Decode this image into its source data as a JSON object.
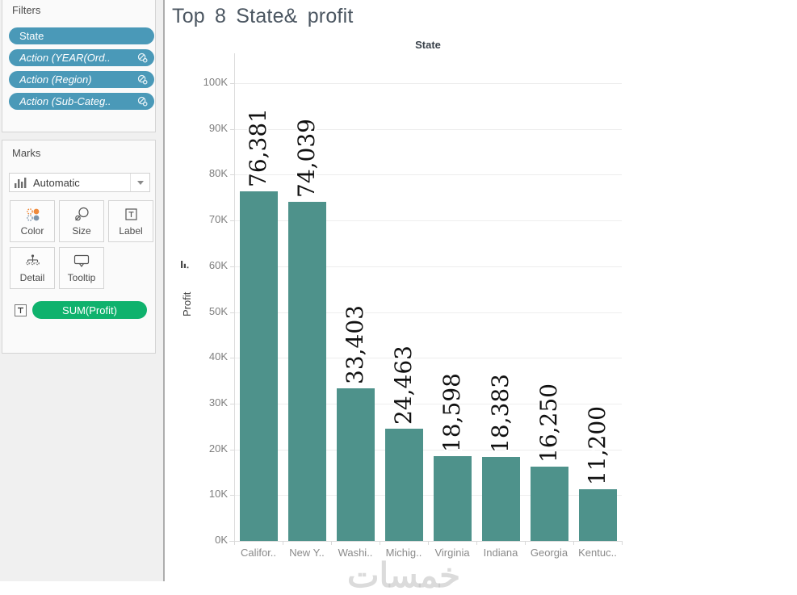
{
  "filters_panel": {
    "title": "Filters",
    "pill_color": "#4a99b8",
    "pills": [
      {
        "label": "State",
        "italic": false,
        "icon": null
      },
      {
        "label": "Action (YEAR(Ord..",
        "italic": true,
        "icon": "action-filter-icon"
      },
      {
        "label": "Action (Region)",
        "italic": true,
        "icon": "action-filter-icon"
      },
      {
        "label": "Action (Sub-Categ..",
        "italic": true,
        "icon": "action-filter-icon"
      }
    ]
  },
  "marks_panel": {
    "title": "Marks",
    "mark_type_selector": {
      "label": "Automatic",
      "icon": "bar-chart-icon",
      "arrow_icon": "dropdown-arrow-icon"
    },
    "buttons": [
      {
        "label": "Color",
        "icon": "color-icon"
      },
      {
        "label": "Size",
        "icon": "size-icon"
      },
      {
        "label": "Label",
        "icon": "label-icon"
      },
      {
        "label": "Detail",
        "icon": "detail-icon"
      },
      {
        "label": "Tooltip",
        "icon": "tooltip-icon"
      }
    ],
    "field_pill": {
      "prefix_icon": "text-label-icon",
      "label": "SUM(Profit)",
      "color": "#0fb26d"
    }
  },
  "chart_data": {
    "type": "bar",
    "title": "Top 8 State& profit",
    "column_header": "State",
    "categories": [
      "Califor..",
      "New Y..",
      "Washi..",
      "Michig..",
      "Virginia",
      "Indiana",
      "Georgia",
      "Kentuc.."
    ],
    "values": [
      76381,
      74039,
      33403,
      24463,
      18598,
      18383,
      16250,
      11200
    ],
    "value_labels": [
      "76,381",
      "74,039",
      "33,403",
      "24,463",
      "18,598",
      "18,383",
      "16,250",
      "11,200"
    ],
    "ylabel": "Profit",
    "ylim": [
      0,
      100000
    ],
    "yticks": [
      "0K",
      "10K",
      "20K",
      "30K",
      "40K",
      "50K",
      "60K",
      "70K",
      "80K",
      "90K",
      "100K"
    ],
    "grid": true,
    "legend": "none",
    "sort": "descending",
    "bar_color": "#4e928b"
  },
  "watermark": {
    "text": "خمسات"
  }
}
